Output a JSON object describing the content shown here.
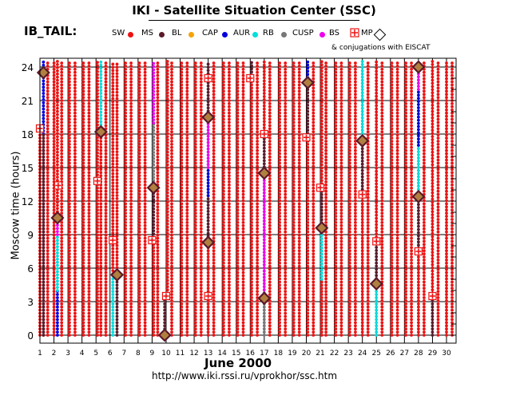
{
  "page": {
    "title": "IKI - Satellite Situation Center (SSC)",
    "region_label": "IB_TAIL:",
    "conjugation_note": "& conjugations with EISCAT",
    "url": "http://www.iki.rssi.ru/vprokhor/ssc.htm"
  },
  "legend": [
    {
      "key": "SW",
      "color": "#ee1111"
    },
    {
      "key": "MS",
      "color": "#5a1a2a"
    },
    {
      "key": "BL",
      "color": "#f5a300"
    },
    {
      "key": "CAP",
      "color": "#0000dd"
    },
    {
      "key": "AUR",
      "color": "#00dddd"
    },
    {
      "key": "RB",
      "color": "#777777"
    },
    {
      "key": "CUSP",
      "color": "#ee00ee"
    },
    {
      "key": "BS",
      "color": "#ee1111"
    },
    {
      "key": "MP",
      "color": "#000000"
    }
  ],
  "chart_data": {
    "type": "scatter",
    "title": "IKI - Satellite Situation Center (SSC)",
    "xlabel": "June   2000",
    "ylabel": "Moscow time (hours)",
    "x_ticks": [
      "1",
      "2",
      "3",
      "4",
      "5",
      "6",
      "7",
      "8",
      "9",
      "10",
      "11",
      "12",
      "13",
      "14",
      "15",
      "16",
      "17",
      "18",
      "19",
      "20",
      "21",
      "22",
      "23",
      "24",
      "25",
      "26",
      "27",
      "28",
      "29",
      "30"
    ],
    "y_ticks": [
      "0",
      "3",
      "6",
      "9",
      "12",
      "15",
      "18",
      "21",
      "24"
    ],
    "xlim": [
      1,
      30
    ],
    "ylim": [
      0,
      24
    ],
    "colors": {
      "sw": "#ee1111",
      "ms": "#5a1a2a",
      "bl": "#f5a300",
      "cap": "#0000dd",
      "aur": "#00dddd",
      "rb": "#777777",
      "cusp": "#ee00ee",
      "diamond_fill": "#b08040",
      "diamond_stroke": "#5a1a2a"
    },
    "segments": [
      {
        "day": 1.25,
        "from": 18,
        "to": 24.5,
        "region": "cap"
      },
      {
        "day": 1.25,
        "from": 0,
        "to": 18,
        "region": "sw"
      },
      {
        "day": 1.0,
        "from": 0,
        "to": 18,
        "region": "sw"
      },
      {
        "day": 1.55,
        "from": 0,
        "to": 24.5,
        "region": "sw"
      },
      {
        "day": 1.25,
        "from": 0,
        "to": 18,
        "region": "ms"
      },
      {
        "day": 2.25,
        "from": 0,
        "to": 4,
        "region": "cap"
      },
      {
        "day": 2.25,
        "from": 4,
        "to": 9,
        "region": "aur"
      },
      {
        "day": 2.25,
        "from": 9,
        "to": 10.5,
        "region": "cusp"
      },
      {
        "day": 2.25,
        "from": 10.5,
        "to": 24.5,
        "region": "sw"
      },
      {
        "day": 2.0,
        "from": 0,
        "to": 24.5,
        "region": "sw"
      },
      {
        "day": 2.55,
        "from": 0,
        "to": 24.5,
        "region": "sw"
      },
      {
        "day": 3.1,
        "from": 0,
        "to": 24.5,
        "region": "sw"
      },
      {
        "day": 3.5,
        "from": 0,
        "to": 24.5,
        "region": "sw"
      },
      {
        "day": 4.1,
        "from": 0,
        "to": 24.5,
        "region": "sw"
      },
      {
        "day": 4.5,
        "from": 0,
        "to": 24.5,
        "region": "sw"
      },
      {
        "day": 5.1,
        "from": 0,
        "to": 13.5,
        "region": "sw"
      },
      {
        "day": 5.1,
        "from": 13.5,
        "to": 24.5,
        "region": "sw"
      },
      {
        "day": 5.35,
        "from": 0,
        "to": 18,
        "region": "sw"
      },
      {
        "day": 5.35,
        "from": 18,
        "to": 24.5,
        "region": "aur"
      },
      {
        "day": 5.7,
        "from": 0,
        "to": 24.5,
        "region": "sw"
      },
      {
        "day": 6.2,
        "from": 0,
        "to": 5.5,
        "region": "aur"
      },
      {
        "day": 6.2,
        "from": 5.5,
        "to": 24.5,
        "region": "sw"
      },
      {
        "day": 6.5,
        "from": 0,
        "to": 5.5,
        "region": "ms"
      },
      {
        "day": 6.5,
        "from": 5.5,
        "to": 24.5,
        "region": "sw"
      },
      {
        "day": 7.1,
        "from": 0,
        "to": 24.5,
        "region": "sw"
      },
      {
        "day": 7.5,
        "from": 0,
        "to": 24.5,
        "region": "sw"
      },
      {
        "day": 8.1,
        "from": 0,
        "to": 24.5,
        "region": "sw"
      },
      {
        "day": 8.5,
        "from": 0,
        "to": 24.5,
        "region": "sw"
      },
      {
        "day": 9.1,
        "from": 0,
        "to": 8.5,
        "region": "sw"
      },
      {
        "day": 9.1,
        "from": 8.5,
        "to": 13,
        "region": "ms"
      },
      {
        "day": 9.1,
        "from": 13,
        "to": 19,
        "region": "rb"
      },
      {
        "day": 9.1,
        "from": 19,
        "to": 24.5,
        "region": "cusp"
      },
      {
        "day": 9.4,
        "from": 0,
        "to": 24.5,
        "region": "sw"
      },
      {
        "day": 9.9,
        "from": 0,
        "to": 3.5,
        "region": "ms"
      },
      {
        "day": 10.1,
        "from": 3.5,
        "to": 24.5,
        "region": "sw"
      },
      {
        "day": 10.4,
        "from": 0,
        "to": 24.5,
        "region": "sw"
      },
      {
        "day": 11.1,
        "from": 0,
        "to": 24.5,
        "region": "sw"
      },
      {
        "day": 11.5,
        "from": 0,
        "to": 24.5,
        "region": "sw"
      },
      {
        "day": 12.1,
        "from": 0,
        "to": 24.5,
        "region": "sw"
      },
      {
        "day": 12.5,
        "from": 0,
        "to": 24.5,
        "region": "sw"
      },
      {
        "day": 13.0,
        "from": 0,
        "to": 8,
        "region": "sw"
      },
      {
        "day": 13.0,
        "from": 8,
        "to": 12.5,
        "region": "ms"
      },
      {
        "day": 13.0,
        "from": 12.5,
        "to": 15,
        "region": "cap"
      },
      {
        "day": 13.0,
        "from": 15,
        "to": 19.5,
        "region": "cusp"
      },
      {
        "day": 13.0,
        "from": 19.5,
        "to": 24.5,
        "region": "ms"
      },
      {
        "day": 13.4,
        "from": 0,
        "to": 24.5,
        "region": "sw"
      },
      {
        "day": 14.1,
        "from": 0,
        "to": 24.5,
        "region": "sw"
      },
      {
        "day": 14.5,
        "from": 0,
        "to": 24.5,
        "region": "sw"
      },
      {
        "day": 15.1,
        "from": 0,
        "to": 24.5,
        "region": "sw"
      },
      {
        "day": 15.5,
        "from": 0,
        "to": 24.5,
        "region": "sw"
      },
      {
        "day": 16.1,
        "from": 0,
        "to": 23,
        "region": "sw"
      },
      {
        "day": 16.1,
        "from": 23,
        "to": 24.5,
        "region": "ms"
      },
      {
        "day": 16.5,
        "from": 0,
        "to": 24.5,
        "region": "sw"
      },
      {
        "day": 17.0,
        "from": 0,
        "to": 3.5,
        "region": "rb"
      },
      {
        "day": 17.0,
        "from": 3.5,
        "to": 14.5,
        "region": "cusp"
      },
      {
        "day": 17.0,
        "from": 14.5,
        "to": 18,
        "region": "ms"
      },
      {
        "day": 17.0,
        "from": 18,
        "to": 24.5,
        "region": "sw"
      },
      {
        "day": 17.4,
        "from": 0,
        "to": 24.5,
        "region": "sw"
      },
      {
        "day": 18.1,
        "from": 0,
        "to": 24.5,
        "region": "sw"
      },
      {
        "day": 18.5,
        "from": 0,
        "to": 24.5,
        "region": "sw"
      },
      {
        "day": 19.1,
        "from": 0,
        "to": 24.5,
        "region": "sw"
      },
      {
        "day": 19.5,
        "from": 0,
        "to": 24.5,
        "region": "sw"
      },
      {
        "day": 20.1,
        "from": 0,
        "to": 17.5,
        "region": "sw"
      },
      {
        "day": 20.1,
        "from": 17.5,
        "to": 22.5,
        "region": "ms"
      },
      {
        "day": 20.1,
        "from": 22.5,
        "to": 24.5,
        "region": "cap"
      },
      {
        "day": 20.5,
        "from": 0,
        "to": 24.5,
        "region": "sw"
      },
      {
        "day": 21.1,
        "from": 0,
        "to": 5,
        "region": "sw"
      },
      {
        "day": 21.1,
        "from": 5,
        "to": 9.5,
        "region": "aur"
      },
      {
        "day": 21.1,
        "from": 9.5,
        "to": 13,
        "region": "ms"
      },
      {
        "day": 21.1,
        "from": 13,
        "to": 24.5,
        "region": "sw"
      },
      {
        "day": 21.4,
        "from": 0,
        "to": 24.5,
        "region": "sw"
      },
      {
        "day": 22.1,
        "from": 0,
        "to": 24.5,
        "region": "sw"
      },
      {
        "day": 22.5,
        "from": 0,
        "to": 24.5,
        "region": "sw"
      },
      {
        "day": 23.1,
        "from": 0,
        "to": 24.5,
        "region": "sw"
      },
      {
        "day": 23.5,
        "from": 0,
        "to": 24.5,
        "region": "sw"
      },
      {
        "day": 24.0,
        "from": 0,
        "to": 12.5,
        "region": "sw"
      },
      {
        "day": 24.0,
        "from": 12.5,
        "to": 17.5,
        "region": "ms"
      },
      {
        "day": 24.0,
        "from": 17.5,
        "to": 24.5,
        "region": "aur"
      },
      {
        "day": 24.4,
        "from": 0,
        "to": 24.5,
        "region": "sw"
      },
      {
        "day": 25.0,
        "from": 0,
        "to": 4.5,
        "region": "aur"
      },
      {
        "day": 25.0,
        "from": 4.5,
        "to": 8.5,
        "region": "ms"
      },
      {
        "day": 25.0,
        "from": 8.5,
        "to": 24.5,
        "region": "sw"
      },
      {
        "day": 25.4,
        "from": 0,
        "to": 24.5,
        "region": "sw"
      },
      {
        "day": 26.1,
        "from": 0,
        "to": 24.5,
        "region": "sw"
      },
      {
        "day": 26.5,
        "from": 0,
        "to": 24.5,
        "region": "sw"
      },
      {
        "day": 27.1,
        "from": 0,
        "to": 24.5,
        "region": "sw"
      },
      {
        "day": 27.5,
        "from": 0,
        "to": 24.5,
        "region": "sw"
      },
      {
        "day": 28.0,
        "from": 0,
        "to": 7.5,
        "region": "sw"
      },
      {
        "day": 28.0,
        "from": 7.5,
        "to": 12.5,
        "region": "ms"
      },
      {
        "day": 28.0,
        "from": 12.5,
        "to": 17,
        "region": "aur"
      },
      {
        "day": 28.0,
        "from": 17,
        "to": 22,
        "region": "cap"
      },
      {
        "day": 28.0,
        "from": 22,
        "to": 24.5,
        "region": "cusp"
      },
      {
        "day": 28.4,
        "from": 0,
        "to": 24.5,
        "region": "sw"
      },
      {
        "day": 29.0,
        "from": 0,
        "to": 3.5,
        "region": "ms"
      },
      {
        "day": 29.0,
        "from": 3.5,
        "to": 24.5,
        "region": "sw"
      },
      {
        "day": 29.4,
        "from": 0,
        "to": 24.5,
        "region": "sw"
      },
      {
        "day": 30.0,
        "from": 0,
        "to": 24.5,
        "region": "sw"
      },
      {
        "day": 30.4,
        "from": 0,
        "to": 24.5,
        "region": "sw"
      }
    ],
    "diamonds": [
      {
        "day": 1.25,
        "hour": 23.5
      },
      {
        "day": 2.25,
        "hour": 10.5
      },
      {
        "day": 5.35,
        "hour": 18.2
      },
      {
        "day": 6.5,
        "hour": 5.4
      },
      {
        "day": 9.1,
        "hour": 13.2
      },
      {
        "day": 9.9,
        "hour": 0.0
      },
      {
        "day": 13.0,
        "hour": 8.3
      },
      {
        "day": 13.0,
        "hour": 19.5
      },
      {
        "day": 17.0,
        "hour": 3.3
      },
      {
        "day": 17.0,
        "hour": 14.5
      },
      {
        "day": 20.1,
        "hour": 22.6
      },
      {
        "day": 21.1,
        "hour": 9.6
      },
      {
        "day": 24.0,
        "hour": 17.4
      },
      {
        "day": 25.0,
        "hour": 4.6
      },
      {
        "day": 28.0,
        "hour": 12.4
      },
      {
        "day": 28.0,
        "hour": 24.0
      }
    ],
    "mp_crosses": [
      {
        "day": 1.0,
        "hour": 18.5
      },
      {
        "day": 2.3,
        "hour": 13.4
      },
      {
        "day": 5.1,
        "hour": 13.8
      },
      {
        "day": 6.2,
        "hour": 8.5
      },
      {
        "day": 9.0,
        "hour": 8.5
      },
      {
        "day": 10.0,
        "hour": 3.5
      },
      {
        "day": 13.0,
        "hour": 3.5
      },
      {
        "day": 13.0,
        "hour": 23.0
      },
      {
        "day": 16.0,
        "hour": 23.0
      },
      {
        "day": 17.0,
        "hour": 18.0
      },
      {
        "day": 20.0,
        "hour": 17.7
      },
      {
        "day": 21.0,
        "hour": 13.2
      },
      {
        "day": 24.0,
        "hour": 12.6
      },
      {
        "day": 25.0,
        "hour": 8.4
      },
      {
        "day": 28.0,
        "hour": 7.5
      },
      {
        "day": 29.0,
        "hour": 3.5
      }
    ]
  }
}
